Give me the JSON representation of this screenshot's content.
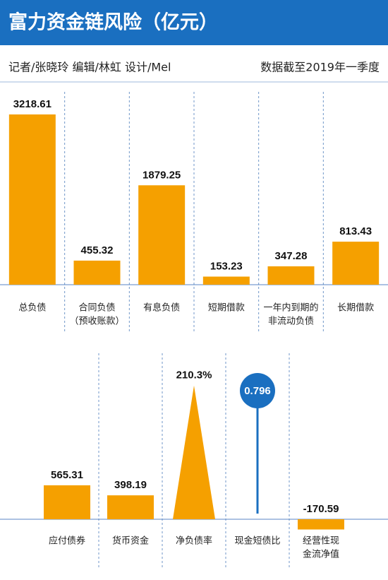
{
  "header": {
    "title": "富力资金链风险（亿元）",
    "credits": "记者/张晓玲  编辑/林虹  设计/Mel",
    "date_note": "数据截至2019年一季度"
  },
  "chart_data": [
    {
      "type": "bar",
      "color": "#f5a000",
      "categories": [
        [
          "总负债"
        ],
        [
          "合同负债",
          "（预收账款）"
        ],
        [
          "有息负债"
        ],
        [
          "短期借款"
        ],
        [
          "一年内到期的",
          "非流动负债"
        ],
        [
          "长期借款"
        ]
      ],
      "values": [
        3218.61,
        455.32,
        1879.25,
        153.23,
        347.28,
        813.43
      ]
    },
    {
      "type": "mixed",
      "color": "#f5a000",
      "circle_color": "#1a6fc0",
      "categories": [
        [
          "应付债券"
        ],
        [
          "货币资金"
        ],
        [
          "净负债率"
        ],
        [
          "现金短债比"
        ],
        [
          "经营性现",
          "金流净值"
        ]
      ],
      "shapes": [
        "bar",
        "bar",
        "triangle",
        "circle",
        "bar"
      ],
      "values": [
        565.31,
        398.19,
        210.3,
        0.796,
        -170.59
      ],
      "value_labels": [
        "565.31",
        "398.19",
        "210.3%",
        "0.796",
        "-170.59"
      ]
    }
  ]
}
